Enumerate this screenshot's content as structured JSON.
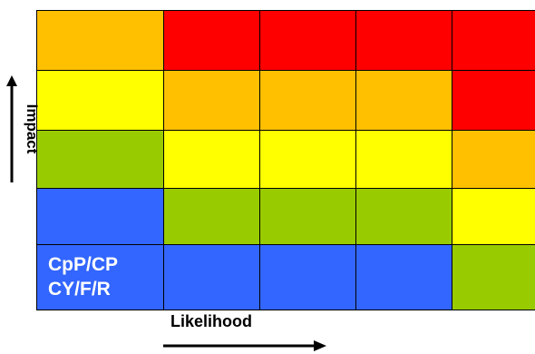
{
  "colors": {
    "red": "#ff0000",
    "orange": "#ffc000",
    "yellow": "#ffff00",
    "green": "#99cc00",
    "blue": "#3366ff"
  },
  "grid": {
    "rows": 5,
    "columns": 5,
    "cells": [
      [
        "orange",
        "red",
        "red",
        "red",
        "red"
      ],
      [
        "yellow",
        "orange",
        "orange",
        "orange",
        "red"
      ],
      [
        "green",
        "yellow",
        "yellow",
        "yellow",
        "orange"
      ],
      [
        "blue",
        "green",
        "green",
        "green",
        "yellow"
      ],
      [
        "blue",
        "blue",
        "blue",
        "blue",
        "green"
      ]
    ]
  },
  "cell_text": {
    "line1": "CpP/CP",
    "line2": "CY/F/R"
  },
  "axes": {
    "y_label": "Impact",
    "x_label": "Likelihood"
  }
}
